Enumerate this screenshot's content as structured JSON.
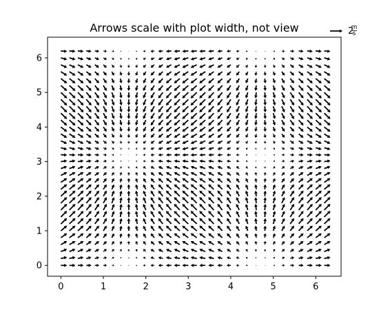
{
  "chart_data": {
    "type": "quiver",
    "title": "Arrows scale with plot width, not view",
    "xlabel": "",
    "ylabel": "",
    "xlim": [
      -0.314,
      6.597
    ],
    "ylim": [
      -0.314,
      6.597
    ],
    "x_ticks": [
      0,
      1,
      2,
      3,
      4,
      5,
      6
    ],
    "y_ticks": [
      0,
      1,
      2,
      3,
      4,
      5,
      6
    ],
    "x_tick_labels": [
      "0",
      "1",
      "2",
      "3",
      "4",
      "5",
      "6"
    ],
    "y_tick_labels": [
      "0",
      "1",
      "2",
      "3",
      "4",
      "5",
      "6"
    ],
    "grid": "x, y = meshgrid(arange(0, 2π, 0.2)) — 32 × 32 points",
    "u": "cos(x)",
    "v": "sin(y)",
    "key": {
      "value": 2,
      "label_main": "2",
      "label_num": "m",
      "label_den": "s",
      "placement": "top-right, outside axes"
    },
    "arrow_color": "#000000"
  }
}
